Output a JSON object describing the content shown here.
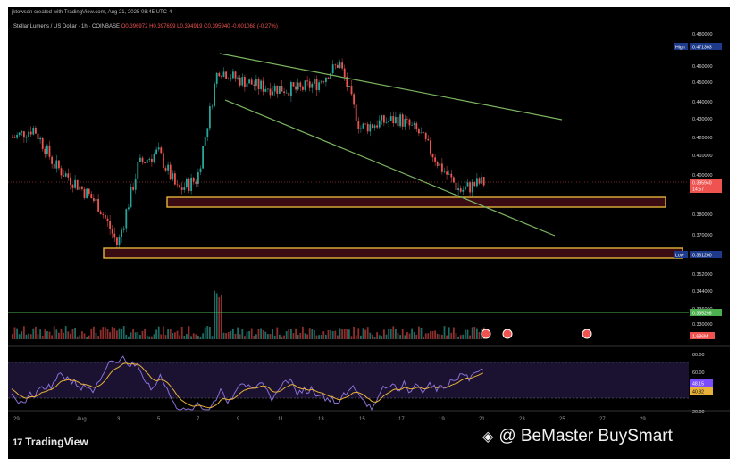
{
  "header": {
    "credit": "jktowson created with TradingView.com, Aug 21, 2025 08:45 UTC-4",
    "symbol": "Stellar Lumens / US Dollar · 1h · COINBASE",
    "ohlc": "O0.396972 H0.397699 L0.394919 C0.395940 -0.001068 (-0.27%)"
  },
  "price_axis": {
    "labels": [
      "0.480000",
      "0.460000",
      "0.450000",
      "0.440000",
      "0.430000",
      "0.420000",
      "0.410000",
      "0.400000",
      "0.380000",
      "0.370000",
      "0.352000",
      "0.344000",
      "0.336000",
      "0.330000"
    ],
    "values": [
      0.48,
      0.46,
      0.45,
      0.44,
      0.43,
      0.42,
      0.41,
      0.4,
      0.38,
      0.37,
      0.352,
      0.344,
      0.336,
      0.33
    ],
    "high_label": "High",
    "high_value": "0.471303",
    "low_label": "Low",
    "low_value": "0.361200",
    "current_price": "0.395940",
    "current_countdown": "14:57",
    "green_line_value": "0.335298",
    "volume_value": "1.686M"
  },
  "rsi_axis": {
    "labels": [
      "80.00",
      "60.00",
      "20.00"
    ],
    "values": [
      80,
      60,
      20
    ],
    "rsi": "48.15",
    "rsi_ma": "40.82"
  },
  "time_axis": {
    "labels": [
      "29",
      "Aug",
      "3",
      "5",
      "7",
      "9",
      "11",
      "13",
      "15",
      "17",
      "19",
      "21",
      "23",
      "25",
      "27",
      "29"
    ]
  },
  "chart_data": {
    "type": "candlestick",
    "x": [
      "Jul 29",
      "Jul 30",
      "Jul 31",
      "Aug 1",
      "Aug 2",
      "Aug 3",
      "Aug 4",
      "Aug 5",
      "Aug 6",
      "Aug 7",
      "Aug 8",
      "Aug 9",
      "Aug 10",
      "Aug 11",
      "Aug 12",
      "Aug 13",
      "Aug 14",
      "Aug 15",
      "Aug 16",
      "Aug 17",
      "Aug 18",
      "Aug 19",
      "Aug 20",
      "Aug 21"
    ],
    "close": [
      0.42,
      0.425,
      0.405,
      0.395,
      0.385,
      0.365,
      0.405,
      0.412,
      0.392,
      0.398,
      0.458,
      0.452,
      0.448,
      0.447,
      0.446,
      0.45,
      0.462,
      0.425,
      0.428,
      0.43,
      0.422,
      0.405,
      0.392,
      0.396
    ],
    "high_value": 0.471303,
    "low_value": 0.3612,
    "resistance_zones": [
      [
        0.3855,
        0.3885
      ],
      [
        0.3595,
        0.3628
      ]
    ],
    "support_line": 0.335298,
    "channel_upper": [
      [
        "Aug 8",
        0.465
      ],
      [
        "Aug 25",
        0.432
      ]
    ],
    "channel_lower": [
      [
        "Aug 8",
        0.447
      ],
      [
        "Aug 25",
        0.372
      ]
    ],
    "rsi_levels": [
      80,
      60,
      20
    ],
    "rsi": 48.15,
    "rsi_ma": 40.82
  },
  "branding": {
    "logo": "TradingView",
    "watermark": "@ BeMaster BuySmart"
  }
}
